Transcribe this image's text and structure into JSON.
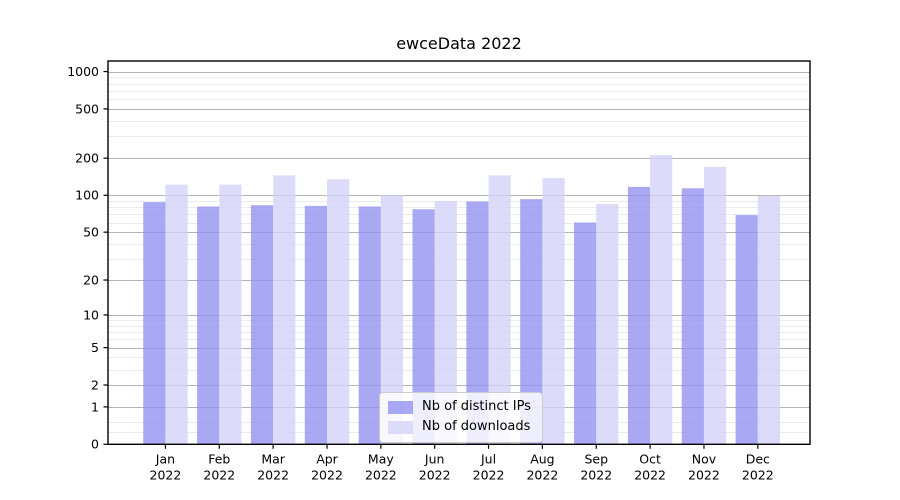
{
  "chart_data": {
    "type": "bar",
    "title": "ewceData 2022",
    "categories": [
      "Jan",
      "Feb",
      "Mar",
      "Apr",
      "May",
      "Jun",
      "Jul",
      "Aug",
      "Sep",
      "Oct",
      "Nov",
      "Dec"
    ],
    "year_label": "2022",
    "series": [
      {
        "name": "Nb of distinct IPs",
        "values": [
          88,
          81,
          83,
          82,
          81,
          77,
          89,
          93,
          60,
          117,
          114,
          69
        ],
        "color": "#8f8ff0"
      },
      {
        "name": "Nb of downloads",
        "values": [
          122,
          122,
          145,
          135,
          100,
          90,
          145,
          138,
          85,
          212,
          170,
          99
        ],
        "color": "#d2d2f8"
      }
    ],
    "xlabel": "",
    "ylabel": "",
    "yscale": "log10(value+1)",
    "yticks": [
      0,
      1,
      2,
      5,
      10,
      20,
      50,
      100,
      200,
      500,
      1000
    ],
    "yminor": [
      0.25,
      0.5,
      3,
      4,
      6,
      7,
      8,
      9,
      30,
      40,
      60,
      70,
      80,
      90,
      300,
      400,
      600,
      700,
      800,
      900
    ],
    "ylim": [
      0,
      1216
    ],
    "grid": true,
    "legend_position": "lower center",
    "colors": {
      "major_gridline": "#b4b4b4",
      "minor_gridline": "#ebebeb",
      "spine": "#000000",
      "tick_text": "#000000",
      "background": "#ffffff"
    }
  }
}
